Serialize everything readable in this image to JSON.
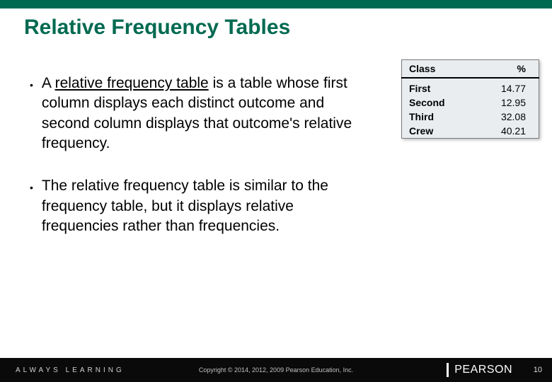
{
  "accent_color": "#006a51",
  "footer_bg": "#0a0a0a",
  "title": "Relative Frequency Tables",
  "bullets": {
    "b1": {
      "pre": "A ",
      "term": "relative frequency table",
      "post": " is a table whose first column displays each distinct outcome and second column displays that outcome's relative frequency."
    },
    "b2": {
      "text": "The relative frequency table is similar to the frequency table, but it displays relative frequencies rather than frequencies."
    }
  },
  "table": {
    "headers": {
      "c1": "Class",
      "c2": "%"
    },
    "rows": [
      {
        "c1": "First",
        "c2": "14.77"
      },
      {
        "c1": "Second",
        "c2": "12.95"
      },
      {
        "c1": "Third",
        "c2": "32.08"
      },
      {
        "c1": "Crew",
        "c2": "40.21"
      }
    ],
    "bg": "#e9edf0"
  },
  "footer": {
    "learning": "ALWAYS LEARNING",
    "copyright": "Copyright © 2014, 2012, 2009 Pearson Education, Inc.",
    "brand": "PEARSON",
    "page": "10"
  }
}
